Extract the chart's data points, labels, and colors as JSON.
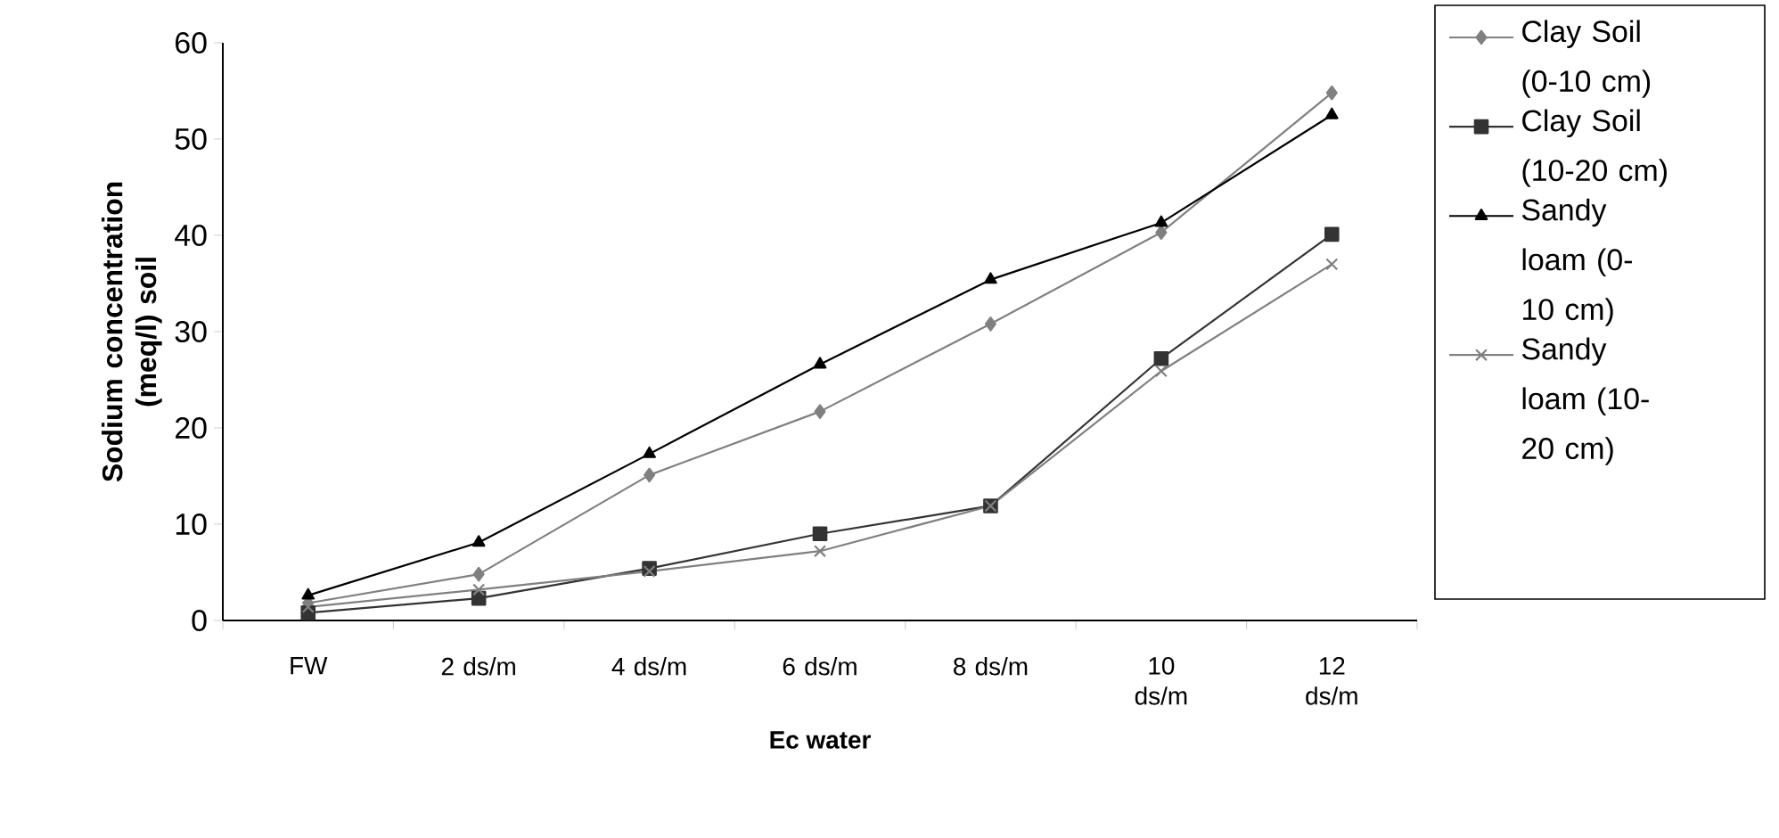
{
  "chart_data": {
    "type": "line",
    "xlabel": "Ec water",
    "ylabel": "Sodium concentration (meq/l) soil",
    "categories": [
      "FW",
      "2 ds/m",
      "4 ds/m",
      "6 ds/m",
      "8 ds/m",
      "10 ds/m",
      "12 ds/m"
    ],
    "series": [
      {
        "name": "Clay Soil (0-10 cm)",
        "color": "#808080",
        "marker": "diamond",
        "values": [
          1.8,
          4.8,
          15.1,
          21.7,
          30.8,
          40.3,
          54.8
        ]
      },
      {
        "name": "Clay Soil (10-20 cm)",
        "color": "#333333",
        "marker": "square",
        "values": [
          0.8,
          2.3,
          5.4,
          9.0,
          11.9,
          27.2,
          40.1
        ]
      },
      {
        "name": "Sandy loam (0-10 cm)",
        "color": "#000000",
        "marker": "triangle",
        "values": [
          2.6,
          8.1,
          17.3,
          26.6,
          35.4,
          41.3,
          52.5
        ]
      },
      {
        "name": "Sandy loam (10-20 cm)",
        "color": "#808080",
        "marker": "cross",
        "values": [
          1.4,
          3.2,
          5.1,
          7.2,
          11.9,
          25.9,
          37.0
        ]
      }
    ],
    "ylim": [
      0,
      60
    ],
    "yticks": [
      0,
      10,
      20,
      30,
      40,
      50,
      60
    ],
    "legend": "right",
    "grid": false,
    "line_style": "solid"
  }
}
